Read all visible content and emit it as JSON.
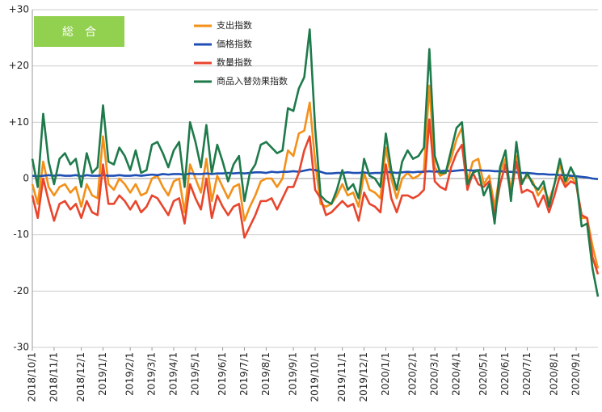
{
  "chart_data": {
    "type": "line",
    "title": "総　合",
    "categories": [
      "2018/10/1",
      null,
      null,
      null,
      "2018/11/1",
      null,
      null,
      null,
      null,
      "2018/12/1",
      null,
      null,
      null,
      "2019/1/1",
      null,
      null,
      null,
      null,
      "2019/2/1",
      null,
      null,
      null,
      "2019/3/1",
      null,
      null,
      null,
      "2019/4/1",
      null,
      null,
      null,
      "2019/5/1",
      null,
      null,
      null,
      null,
      "2019/6/1",
      null,
      null,
      null,
      "2019/7/1",
      null,
      null,
      null,
      "2019/8/1",
      null,
      null,
      null,
      null,
      "2019/9/1",
      null,
      null,
      null,
      "2019/10/1",
      null,
      null,
      null,
      null,
      "2019/11/1",
      null,
      null,
      null,
      "2019/12/1",
      null,
      null,
      null,
      "2020/1/1",
      null,
      null,
      null,
      null,
      "2020/2/1",
      null,
      null,
      null,
      "2020/3/1",
      null,
      null,
      null,
      "2020/4/1",
      null,
      null,
      null,
      null,
      "2020/5/1",
      null,
      null,
      null,
      "2020/6/1",
      null,
      null,
      null,
      "2020/7/1",
      null,
      null,
      null,
      null,
      "2020/8/1",
      null,
      null,
      null,
      "2020/9/1",
      null,
      null,
      null,
      null
    ],
    "series": [
      {
        "name": "支出指数",
        "color": "#f39019",
        "values": [
          -1,
          -4.5,
          3,
          -1.5,
          -3,
          -1.5,
          -1,
          -2.5,
          -1.5,
          -5,
          -1,
          -3,
          -3.5,
          7.5,
          -1,
          -2,
          0,
          -1,
          -2.5,
          -1,
          -3,
          -2.5,
          0,
          0.5,
          -1.5,
          -3,
          -0.5,
          0,
          -6,
          2.5,
          0,
          -2.5,
          3.5,
          -4,
          0.5,
          -1.5,
          -3.5,
          -1.5,
          -1,
          -7.5,
          -5,
          -3,
          -0.5,
          0,
          0,
          -1.5,
          0,
          5,
          4,
          8,
          8.5,
          13.5,
          3,
          -4.5,
          -5,
          -4.5,
          -3,
          -1,
          -3,
          -2.5,
          -5,
          1,
          -2,
          -2.5,
          -3.5,
          5.5,
          0,
          -3.5,
          0,
          1,
          0,
          0.5,
          1.5,
          16.5,
          2,
          0.5,
          1,
          3.5,
          7,
          9,
          -0.5,
          3,
          3.5,
          -1,
          0.5,
          -5,
          1,
          3.5,
          -2,
          4,
          -0.5,
          0.5,
          -0.5,
          -3,
          -1.5,
          -4,
          -1,
          2.5,
          -1,
          0.5,
          -1,
          -7,
          -7,
          -12,
          -16
        ]
      },
      {
        "name": "価格指数",
        "color": "#1f4fb4",
        "values": [
          0.5,
          0.4,
          0.5,
          0.6,
          0.5,
          0.6,
          0.5,
          0.5,
          0.6,
          0.4,
          0.6,
          0.5,
          0.5,
          0.6,
          0.5,
          0.5,
          0.6,
          0.5,
          0.5,
          0.6,
          0.5,
          0.6,
          0.7,
          0.6,
          0.8,
          0.7,
          0.8,
          0.8,
          0.7,
          0.9,
          0.8,
          0.8,
          0.9,
          0.8,
          0.9,
          0.9,
          1,
          0.9,
          1,
          0.9,
          1,
          1.1,
          1.1,
          1,
          1.2,
          1.1,
          1.2,
          1.2,
          1.3,
          1.2,
          1.4,
          1.6,
          1.5,
          1.2,
          0.9,
          0.9,
          1,
          1,
          1.1,
          1,
          1,
          1.1,
          0.9,
          1,
          1,
          1.2,
          1.1,
          1,
          1.1,
          1.2,
          1.1,
          1.2,
          1.2,
          1.3,
          1.2,
          1.3,
          1.4,
          1.3,
          1.4,
          1.5,
          1.5,
          1.4,
          1.5,
          1.4,
          1.4,
          1.3,
          1.3,
          1.2,
          1.2,
          1.1,
          1,
          1,
          0.9,
          0.8,
          0.8,
          0.7,
          0.7,
          0.6,
          0.6,
          0.5,
          0.4,
          0.3,
          0.2,
          0,
          -0.1
        ]
      },
      {
        "name": "数量指数",
        "color": "#e8452c",
        "values": [
          -3,
          -7,
          0,
          -4,
          -7.5,
          -4.5,
          -4,
          -5.5,
          -4.5,
          -7,
          -4,
          -6,
          -6.5,
          2.5,
          -4.5,
          -4.5,
          -3,
          -4,
          -5.5,
          -4,
          -6,
          -5,
          -3,
          -3.5,
          -5,
          -6.5,
          -4,
          -3.5,
          -8,
          -1,
          -3.5,
          -5.5,
          0,
          -7,
          -3,
          -5,
          -6.5,
          -5,
          -4.5,
          -10.5,
          -8.5,
          -6.5,
          -4,
          -4,
          -3.5,
          -5.5,
          -3.5,
          -1.5,
          -1.5,
          1,
          5,
          7.5,
          -2,
          -3.5,
          -6.5,
          -6,
          -5,
          -4,
          -5,
          -4.5,
          -7.5,
          -2.5,
          -4.5,
          -5,
          -6,
          2.5,
          -3.5,
          -6,
          -3,
          -3,
          -3.5,
          -3,
          -2,
          10.5,
          -0.5,
          -1.5,
          -2,
          2,
          4.5,
          6,
          -2,
          1,
          -1,
          -1.5,
          -0.5,
          -6.5,
          -1,
          2.5,
          -3,
          3,
          -2.5,
          -2,
          -2.5,
          -5,
          -3,
          -6,
          -3,
          0.5,
          -1.5,
          -0.5,
          -1,
          -6.5,
          -7,
          -14,
          -17
        ]
      },
      {
        "name": "商品入替効果指数",
        "color": "#1e7a4a",
        "values": [
          3.5,
          -1.5,
          11.5,
          3,
          -1,
          3.5,
          4.5,
          2.5,
          3.5,
          -1.5,
          4.5,
          1,
          2,
          13,
          3,
          2.5,
          5.5,
          4,
          1.5,
          5,
          1,
          1.5,
          6,
          6.5,
          4.5,
          2,
          5,
          6.5,
          -1.5,
          10,
          6.5,
          2,
          9.5,
          1,
          6,
          3,
          -0.5,
          2.5,
          4,
          -4,
          1,
          2.5,
          6,
          6.5,
          5.5,
          4.5,
          5,
          12.5,
          12,
          16,
          18,
          26.5,
          9,
          -3,
          -4,
          -4.5,
          -2,
          1.5,
          -2,
          -1,
          -3.5,
          3.5,
          0.5,
          0,
          -1.5,
          8,
          1.5,
          -2,
          3,
          5,
          3.5,
          4,
          5.5,
          23,
          4,
          1,
          1,
          5,
          9,
          10,
          -1,
          1,
          1.5,
          -3,
          -1,
          -8,
          2,
          5,
          -4,
          6.5,
          -1,
          1,
          -1,
          -2,
          -0.5,
          -5,
          -1,
          3.5,
          -0.5,
          2,
          0,
          -8.5,
          -8,
          -16,
          -21
        ]
      }
    ],
    "ylim": [
      -30,
      30
    ],
    "yticks": [
      {
        "value": 30,
        "label": "+30"
      },
      {
        "value": 20,
        "label": "+20"
      },
      {
        "value": 10,
        "label": "+10"
      },
      0,
      -10,
      -20,
      -30
    ],
    "grid": true
  }
}
